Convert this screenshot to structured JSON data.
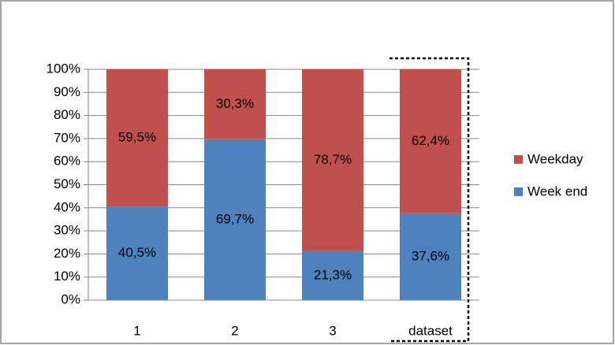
{
  "chart_data": {
    "type": "stacked_bar",
    "categories": [
      "1",
      "2",
      "3",
      "dataset"
    ],
    "series": [
      {
        "name": "Week end",
        "color": "#4f81bd",
        "values": [
          40.5,
          69.7,
          21.3,
          37.6
        ],
        "value_labels": [
          "40,5%",
          "69,7%",
          "21,3%",
          "37,6%"
        ]
      },
      {
        "name": "Weekday",
        "color": "#c0504d",
        "values": [
          59.5,
          30.3,
          78.7,
          62.4
        ],
        "value_labels": [
          "59,5%",
          "30,3%",
          "78,7%",
          "62,4%"
        ]
      }
    ],
    "ylim": [
      0,
      100
    ],
    "yticks": [
      {
        "value": 0,
        "label": "0%"
      },
      {
        "value": 10,
        "label": "10%"
      },
      {
        "value": 20,
        "label": "20%"
      },
      {
        "value": 30,
        "label": "30%"
      },
      {
        "value": 40,
        "label": "40%"
      },
      {
        "value": 50,
        "label": "50%"
      },
      {
        "value": 60,
        "label": "60%"
      },
      {
        "value": 70,
        "label": "70%"
      },
      {
        "value": 80,
        "label": "80%"
      },
      {
        "value": 90,
        "label": "90%"
      },
      {
        "value": 100,
        "label": "100%"
      }
    ],
    "grid": true,
    "legend": "right"
  }
}
